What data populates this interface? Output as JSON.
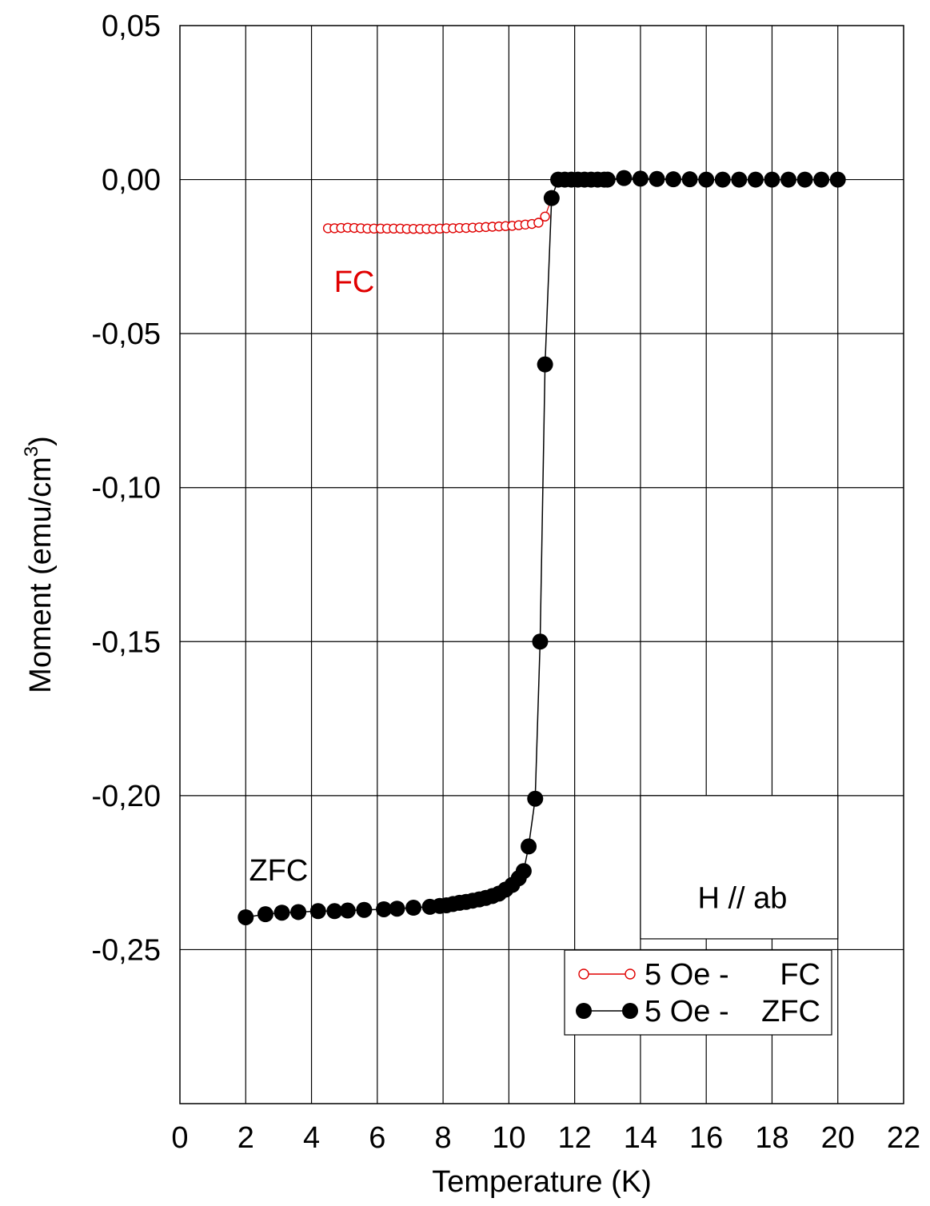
{
  "chart_data": {
    "type": "scatter",
    "title": "",
    "xlabel": "Temperature (K)",
    "ylabel_text": "Moment (emu/cm",
    "ylabel_superscript": "3",
    "ylabel_close": ")",
    "xlim": [
      0,
      22
    ],
    "ylim": [
      -0.3,
      0.05
    ],
    "x_ticks": [
      0,
      2,
      4,
      6,
      8,
      10,
      12,
      14,
      16,
      18,
      20,
      22
    ],
    "x_tick_labels": [
      "0",
      "2",
      "4",
      "6",
      "8",
      "10",
      "12",
      "14",
      "16",
      "18",
      "20",
      "22"
    ],
    "y_ticks": [
      0.05,
      0.0,
      -0.05,
      -0.1,
      -0.15,
      -0.2,
      -0.25
    ],
    "y_tick_labels": [
      "0,05",
      "0,00",
      "-0,05",
      "-0,10",
      "-0,15",
      "-0,20",
      "-0,25"
    ],
    "grid": true,
    "annotations": [
      {
        "text": "FC",
        "color": "#e00000",
        "x": 5.3,
        "y": -0.0365
      },
      {
        "text": "ZFC",
        "color": "#000000",
        "x": 3.0,
        "y": -0.2275
      },
      {
        "text": "H // ab",
        "color": "#000000",
        "x": 17.1,
        "y": -0.2365
      }
    ],
    "inset_box": {
      "x0": 14.0,
      "x1": 20.0,
      "y0": -0.2,
      "y1": -0.2465
    },
    "legend": {
      "placement": "bottom-right",
      "entries": [
        {
          "label_prefix": "5 Oe -",
          "label_suffix": "FC",
          "series": 0
        },
        {
          "label_prefix": "5 Oe -",
          "label_suffix": "ZFC",
          "series": 1
        }
      ]
    },
    "series": [
      {
        "name": "5 Oe - FC",
        "color": "#e00000",
        "marker": "open-circle",
        "x": [
          4.5,
          4.7,
          4.9,
          5.1,
          5.3,
          5.5,
          5.7,
          5.9,
          6.1,
          6.3,
          6.5,
          6.7,
          6.9,
          7.1,
          7.3,
          7.5,
          7.7,
          7.9,
          8.1,
          8.3,
          8.5,
          8.7,
          8.9,
          9.1,
          9.3,
          9.5,
          9.7,
          9.9,
          10.1,
          10.3,
          10.5,
          10.7,
          10.9,
          11.1,
          11.3
        ],
        "y": [
          -0.0158,
          -0.0158,
          -0.0157,
          -0.0156,
          -0.0157,
          -0.0158,
          -0.0159,
          -0.0159,
          -0.0159,
          -0.0159,
          -0.0159,
          -0.0159,
          -0.016,
          -0.016,
          -0.016,
          -0.016,
          -0.016,
          -0.0159,
          -0.0158,
          -0.0158,
          -0.0157,
          -0.0157,
          -0.0156,
          -0.0155,
          -0.0154,
          -0.0153,
          -0.0152,
          -0.0151,
          -0.015,
          -0.0148,
          -0.0146,
          -0.0144,
          -0.014,
          -0.012,
          -0.006
        ]
      },
      {
        "name": "5 Oe - ZFC",
        "color": "#000000",
        "marker": "filled-circle",
        "x": [
          2.0,
          2.6,
          3.1,
          3.6,
          4.2,
          4.7,
          5.1,
          5.6,
          6.2,
          6.6,
          7.1,
          7.6,
          7.9,
          8.1,
          8.3,
          8.5,
          8.7,
          8.9,
          9.1,
          9.3,
          9.5,
          9.7,
          9.9,
          10.1,
          10.3,
          10.45,
          10.6,
          10.8,
          10.95,
          11.1,
          11.3,
          11.5,
          11.7,
          11.9,
          12.1,
          12.3,
          12.5,
          12.7,
          12.9,
          13.0,
          13.5,
          14.0,
          14.5,
          15.0,
          15.5,
          16.0,
          16.5,
          17.0,
          17.5,
          18.0,
          18.5,
          19.0,
          19.5,
          20.0
        ],
        "y": [
          -0.2395,
          -0.2385,
          -0.238,
          -0.2378,
          -0.2375,
          -0.2375,
          -0.2373,
          -0.2371,
          -0.2369,
          -0.2367,
          -0.2364,
          -0.2361,
          -0.2358,
          -0.2356,
          -0.2352,
          -0.2348,
          -0.2345,
          -0.2341,
          -0.2337,
          -0.2332,
          -0.2326,
          -0.2318,
          -0.2305,
          -0.229,
          -0.2268,
          -0.2245,
          -0.2165,
          -0.201,
          -0.15,
          -0.06,
          -0.006,
          0.0,
          0.0,
          0.0,
          0.0,
          0.0,
          0.0,
          0.0,
          0.0,
          0.0,
          0.0005,
          0.0003,
          0.0002,
          0.0001,
          0.0001,
          0.0,
          0.0,
          0.0,
          0.0,
          0.0,
          0.0,
          0.0,
          0.0,
          0.0
        ]
      }
    ]
  }
}
